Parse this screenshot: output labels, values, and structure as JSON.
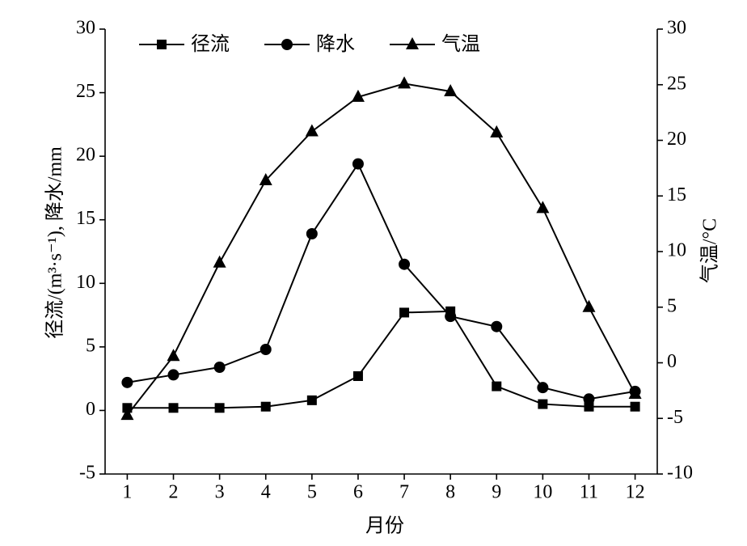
{
  "chart_data": {
    "type": "line",
    "x_label": "月份",
    "y_label": "径流/(m³·s⁻¹), 降水/mm",
    "y2_label": "气温/°C",
    "x": [
      1,
      2,
      3,
      4,
      5,
      6,
      7,
      8,
      9,
      10,
      11,
      12
    ],
    "xlim": [
      0.52,
      12.48
    ],
    "xticks": [
      1,
      2,
      3,
      4,
      5,
      6,
      7,
      8,
      9,
      10,
      11,
      12
    ],
    "ylim": [
      -5,
      30
    ],
    "yticks": [
      -5,
      0,
      5,
      10,
      15,
      20,
      25,
      30
    ],
    "y2lim": [
      -10,
      30
    ],
    "y2ticks": [
      -10,
      -5,
      0,
      5,
      10,
      15,
      20,
      25,
      30
    ],
    "grid": false,
    "legend": "top",
    "series": [
      {
        "name": "径流",
        "color": "#000000",
        "marker": "square",
        "values": [
          0.2,
          0.2,
          0.2,
          0.3,
          0.8,
          2.7,
          7.7,
          7.8,
          1.9,
          0.5,
          0.3,
          0.3
        ]
      },
      {
        "name": "降水",
        "color": "#000000",
        "marker": "circle",
        "values": [
          2.2,
          2.8,
          3.4,
          4.8,
          13.9,
          19.4,
          11.5,
          7.4,
          6.6,
          1.8,
          0.9,
          1.5
        ]
      },
      {
        "name": "气温",
        "color": "#000000",
        "marker": "triangle",
        "axis": "y2",
        "values": [
          -4.7,
          0.6,
          9.0,
          16.4,
          20.8,
          23.9,
          25.1,
          24.4,
          20.7,
          13.9,
          5.0,
          -2.8
        ]
      }
    ]
  }
}
